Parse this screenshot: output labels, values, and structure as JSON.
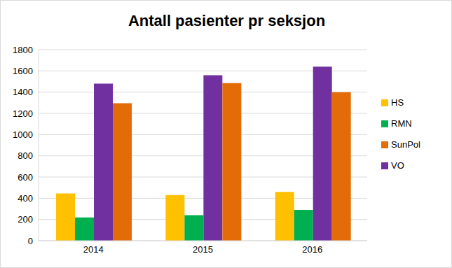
{
  "chart_data": {
    "type": "bar",
    "title": "Antall pasienter pr seksjon",
    "categories": [
      "2014",
      "2015",
      "2016"
    ],
    "series": [
      {
        "name": "HS",
        "color": "#ffc000",
        "values": [
          445,
          430,
          460
        ]
      },
      {
        "name": "RMN",
        "color": "#00b050",
        "values": [
          220,
          240,
          290
        ]
      },
      {
        "name": "VO",
        "color": "#7030a0",
        "values": [
          1480,
          1560,
          1640
        ]
      },
      {
        "name": "SunPol",
        "color": "#e36c09",
        "values": [
          1295,
          1485,
          1400
        ]
      }
    ],
    "ylim": [
      0,
      1800
    ],
    "yticks": [
      0,
      200,
      400,
      600,
      800,
      1000,
      1200,
      1400,
      1600,
      1800
    ],
    "grid": true,
    "legend": "right"
  }
}
